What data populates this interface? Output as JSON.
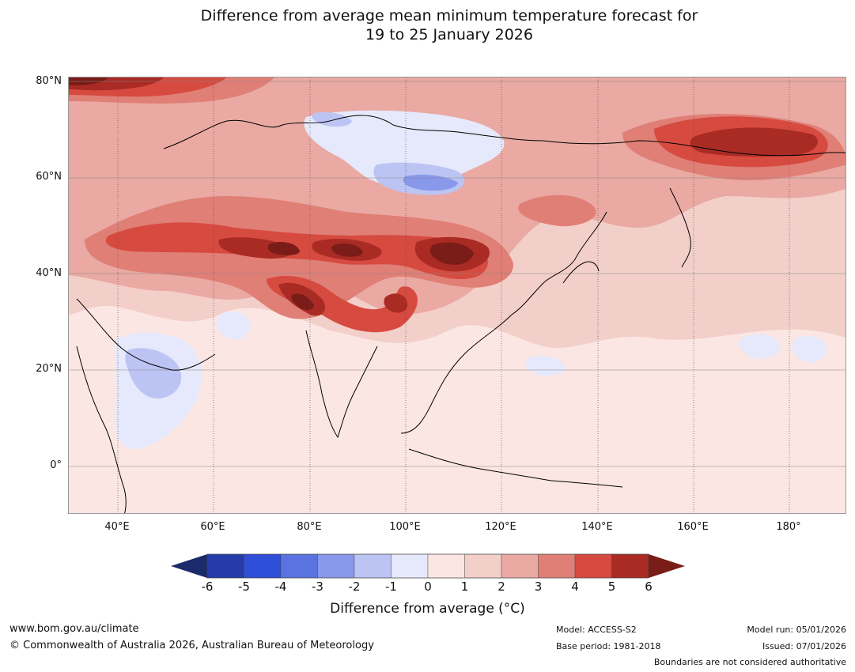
{
  "title": {
    "line1": "Difference from average mean minimum temperature forecast for",
    "line2": "19 to 25 January 2026"
  },
  "map": {
    "region": "Asia, North Indian Ocean and western North Pacific",
    "lat_ticks": [
      "80°N",
      "60°N",
      "40°N",
      "20°N",
      "0°"
    ],
    "lon_ticks": [
      "40°E",
      "60°E",
      "80°E",
      "100°E",
      "120°E",
      "140°E",
      "160°E",
      "180°"
    ],
    "background_color": "#fbe6e3"
  },
  "colorbar": {
    "ticks": [
      "-6",
      "-5",
      "-4",
      "-3",
      "-2",
      "-1",
      "0",
      "1",
      "2",
      "3",
      "4",
      "5",
      "6"
    ],
    "low_extend_color": "#1b2a6b",
    "high_extend_color": "#7a1c18",
    "bins": [
      {
        "range": "-6 to -5",
        "color": "#253ba8"
      },
      {
        "range": "-5 to -4",
        "color": "#2f4fd8"
      },
      {
        "range": "-4 to -3",
        "color": "#5a73e0"
      },
      {
        "range": "-3 to -2",
        "color": "#8898ea"
      },
      {
        "range": "-2 to -1",
        "color": "#bcc4f3"
      },
      {
        "range": "-1 to 0",
        "color": "#e6e9fb"
      },
      {
        "range": "0 to 1",
        "color": "#fbe6e3"
      },
      {
        "range": "1 to 2",
        "color": "#f3cfca"
      },
      {
        "range": "2 to 3",
        "color": "#eaa9a3"
      },
      {
        "range": "3 to 4",
        "color": "#e07f76"
      },
      {
        "range": "4 to 5",
        "color": "#d64a40"
      },
      {
        "range": "5 to 6",
        "color": "#a92b24"
      }
    ],
    "title": "Difference from average (°C)"
  },
  "footer": {
    "website": "www.bom.gov.au/climate",
    "copyright": "© Commonwealth of Australia 2026, Australian Bureau of Meteorology",
    "model": "Model: ACCESS-S2",
    "base_period": "Base period: 1981-2018",
    "model_run": "Model run: 05/01/2026",
    "issued": "Issued: 07/01/2026",
    "disclaimer": "Boundaries are not considered authoritative"
  }
}
